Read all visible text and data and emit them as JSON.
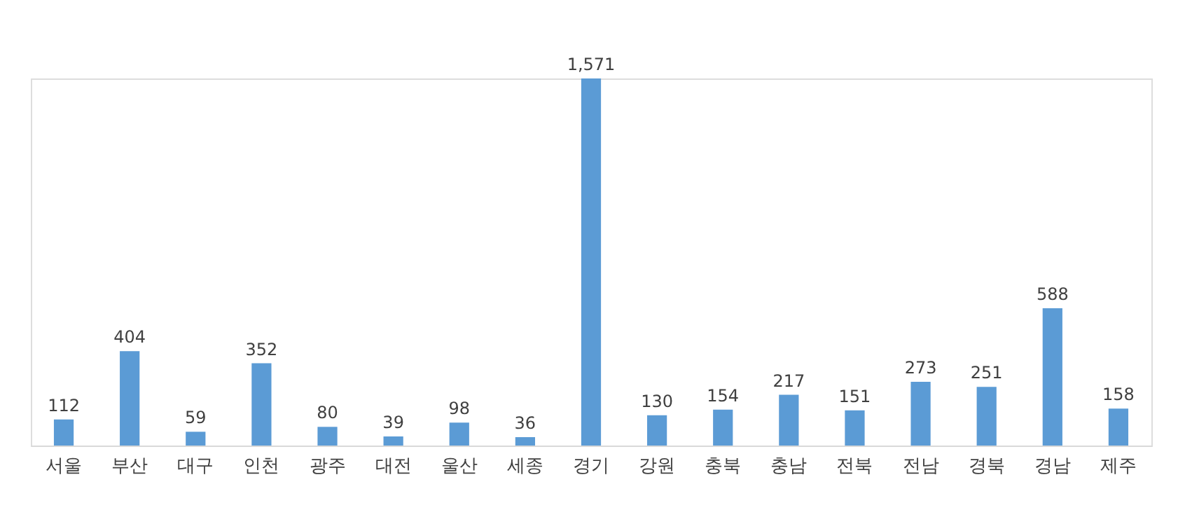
{
  "chart_data": {
    "type": "bar",
    "categories": [
      "서울",
      "부산",
      "대구",
      "인천",
      "광주",
      "대전",
      "울산",
      "세종",
      "경기",
      "강원",
      "충북",
      "충남",
      "전북",
      "전남",
      "경북",
      "경남",
      "제주"
    ],
    "values": [
      112,
      404,
      59,
      352,
      80,
      39,
      98,
      36,
      1571,
      130,
      154,
      217,
      151,
      273,
      251,
      588,
      158
    ],
    "value_labels": [
      "112",
      "404",
      "59",
      "352",
      "80",
      "39",
      "98",
      "36",
      "1,571",
      "130",
      "154",
      "217",
      "151",
      "273",
      "251",
      "588",
      "158"
    ],
    "color": "#5b9bd5"
  }
}
